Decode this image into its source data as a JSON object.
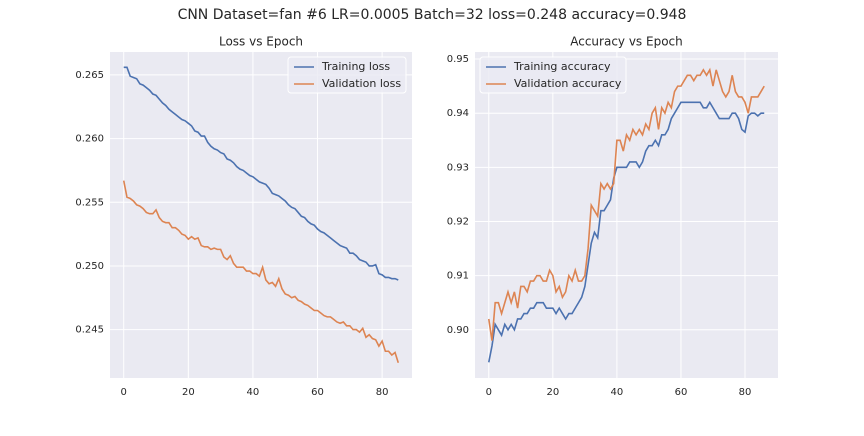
{
  "title": "CNN Dataset=fan #6 LR=0.0005 Batch=32 loss=0.248 accuracy=0.948",
  "chart_data": [
    {
      "type": "line",
      "title": "Loss vs Epoch",
      "legend": "upper right",
      "grid": true,
      "x": [
        0,
        1,
        2,
        3,
        4,
        5,
        6,
        7,
        8,
        9,
        10,
        11,
        12,
        13,
        14,
        15,
        16,
        17,
        18,
        19,
        20,
        21,
        22,
        23,
        24,
        25,
        26,
        27,
        28,
        29,
        30,
        31,
        32,
        33,
        34,
        35,
        36,
        37,
        38,
        39,
        40,
        41,
        42,
        43,
        44,
        45,
        46,
        47,
        48,
        49,
        50,
        51,
        52,
        53,
        54,
        55,
        56,
        57,
        58,
        59,
        60,
        61,
        62,
        63,
        64,
        65,
        66,
        67,
        68,
        69,
        70,
        71,
        72,
        73,
        74,
        75,
        76,
        77,
        78,
        79,
        80,
        81,
        82,
        83,
        84,
        85
      ],
      "xlim": [
        -4.25,
        89.25
      ],
      "xticks": [
        0,
        20,
        40,
        60,
        80
      ],
      "ylim": [
        0.2412,
        0.2668
      ],
      "yticks": [
        0.245,
        {
          "value": 0.25,
          "label": "0.250"
        },
        0.255,
        {
          "value": 0.26,
          "label": "0.260"
        },
        0.265
      ],
      "series": [
        {
          "name": "Training loss",
          "color": "#4c72b0",
          "values": [
            0.2656,
            0.2656,
            0.2649,
            0.2648,
            0.2647,
            0.2643,
            0.2642,
            0.264,
            0.2638,
            0.2635,
            0.2634,
            0.2631,
            0.2628,
            0.2626,
            0.2623,
            0.2621,
            0.2619,
            0.2617,
            0.2615,
            0.2614,
            0.2612,
            0.261,
            0.2606,
            0.2605,
            0.2602,
            0.2602,
            0.2597,
            0.2594,
            0.2592,
            0.2591,
            0.2589,
            0.2588,
            0.2584,
            0.2583,
            0.2581,
            0.2578,
            0.2576,
            0.2575,
            0.2573,
            0.2571,
            0.257,
            0.2568,
            0.2566,
            0.2565,
            0.2564,
            0.2561,
            0.2557,
            0.2556,
            0.2555,
            0.2553,
            0.2551,
            0.2548,
            0.2546,
            0.2545,
            0.2542,
            0.2539,
            0.2538,
            0.2535,
            0.2533,
            0.2532,
            0.2529,
            0.2527,
            0.2526,
            0.2524,
            0.2522,
            0.252,
            0.2518,
            0.2516,
            0.2515,
            0.2514,
            0.251,
            0.251,
            0.2508,
            0.2505,
            0.2504,
            0.2503,
            0.25,
            0.25,
            0.2501,
            0.2494,
            0.2493,
            0.2491,
            0.2491,
            0.249,
            0.249,
            0.2489
          ]
        },
        {
          "name": "Validation loss",
          "color": "#dd8452",
          "values": [
            0.2567,
            0.2554,
            0.2553,
            0.2551,
            0.2548,
            0.2547,
            0.2545,
            0.2542,
            0.2541,
            0.2541,
            0.2544,
            0.2538,
            0.2535,
            0.2534,
            0.2534,
            0.253,
            0.253,
            0.2528,
            0.2525,
            0.2524,
            0.2521,
            0.2523,
            0.2521,
            0.2522,
            0.2516,
            0.2515,
            0.2515,
            0.2513,
            0.2514,
            0.2513,
            0.2513,
            0.2507,
            0.2505,
            0.2508,
            0.2502,
            0.2499,
            0.2499,
            0.2499,
            0.2496,
            0.2496,
            0.2494,
            0.2494,
            0.2492,
            0.2499,
            0.2489,
            0.2486,
            0.2487,
            0.2484,
            0.249,
            0.2482,
            0.2478,
            0.2477,
            0.2475,
            0.2476,
            0.2473,
            0.2472,
            0.247,
            0.2469,
            0.2467,
            0.2465,
            0.2465,
            0.2463,
            0.2461,
            0.246,
            0.246,
            0.2458,
            0.2456,
            0.2455,
            0.2456,
            0.2453,
            0.2453,
            0.245,
            0.245,
            0.2448,
            0.2451,
            0.2444,
            0.2446,
            0.2443,
            0.2442,
            0.2437,
            0.2441,
            0.2433,
            0.2433,
            0.243,
            0.2432,
            0.2424
          ]
        }
      ]
    },
    {
      "type": "line",
      "title": "Accuracy vs Epoch",
      "legend": "upper left",
      "grid": true,
      "x": [
        0,
        1,
        2,
        3,
        4,
        5,
        6,
        7,
        8,
        9,
        10,
        11,
        12,
        13,
        14,
        15,
        16,
        17,
        18,
        19,
        20,
        21,
        22,
        23,
        24,
        25,
        26,
        27,
        28,
        29,
        30,
        31,
        32,
        33,
        34,
        35,
        36,
        37,
        38,
        39,
        40,
        41,
        42,
        43,
        44,
        45,
        46,
        47,
        48,
        49,
        50,
        51,
        52,
        53,
        54,
        55,
        56,
        57,
        58,
        59,
        60,
        61,
        62,
        63,
        64,
        65,
        66,
        67,
        68,
        69,
        70,
        71,
        72,
        73,
        74,
        75,
        76,
        77,
        78,
        79,
        80,
        81,
        82,
        83,
        84,
        85,
        86
      ],
      "xlim": [
        -4.3,
        90.3
      ],
      "xticks": [
        0,
        20,
        40,
        60,
        80
      ],
      "ylim": [
        0.8911,
        0.9513
      ],
      "yticks": [
        {
          "value": 0.9,
          "label": "0.90"
        },
        0.91,
        0.92,
        0.93,
        0.94,
        0.95
      ],
      "series": [
        {
          "name": "Training accuracy",
          "color": "#4c72b0",
          "values": [
            0.894,
            0.897,
            0.901,
            0.9,
            0.899,
            0.901,
            0.9,
            0.901,
            0.9,
            0.902,
            0.902,
            0.903,
            0.903,
            0.904,
            0.904,
            0.905,
            0.905,
            0.905,
            0.904,
            0.904,
            0.904,
            0.903,
            0.904,
            0.903,
            0.902,
            0.903,
            0.903,
            0.904,
            0.905,
            0.906,
            0.908,
            0.912,
            0.916,
            0.918,
            0.917,
            0.922,
            0.922,
            0.923,
            0.924,
            0.928,
            0.93,
            0.93,
            0.93,
            0.93,
            0.931,
            0.931,
            0.931,
            0.93,
            0.931,
            0.933,
            0.934,
            0.934,
            0.935,
            0.934,
            0.936,
            0.936,
            0.937,
            0.939,
            0.94,
            0.941,
            0.942,
            0.942,
            0.942,
            0.942,
            0.942,
            0.942,
            0.942,
            0.941,
            0.941,
            0.942,
            0.941,
            0.94,
            0.939,
            0.939,
            0.939,
            0.939,
            0.94,
            0.94,
            0.939,
            0.937,
            0.9365,
            0.9395,
            0.94,
            0.94,
            0.9395,
            0.94,
            0.94
          ]
        },
        {
          "name": "Validation accuracy",
          "color": "#dd8452",
          "values": [
            0.902,
            0.898,
            0.905,
            0.905,
            0.903,
            0.905,
            0.907,
            0.905,
            0.907,
            0.904,
            0.908,
            0.908,
            0.907,
            0.909,
            0.909,
            0.91,
            0.91,
            0.909,
            0.909,
            0.911,
            0.91,
            0.907,
            0.908,
            0.906,
            0.907,
            0.91,
            0.909,
            0.911,
            0.909,
            0.909,
            0.91,
            0.915,
            0.923,
            0.922,
            0.921,
            0.927,
            0.926,
            0.927,
            0.926,
            0.927,
            0.935,
            0.935,
            0.933,
            0.936,
            0.935,
            0.937,
            0.936,
            0.937,
            0.936,
            0.938,
            0.937,
            0.94,
            0.941,
            0.937,
            0.941,
            0.94,
            0.942,
            0.941,
            0.944,
            0.945,
            0.945,
            0.946,
            0.947,
            0.947,
            0.946,
            0.947,
            0.947,
            0.948,
            0.947,
            0.948,
            0.945,
            0.948,
            0.946,
            0.944,
            0.943,
            0.944,
            0.947,
            0.944,
            0.943,
            0.943,
            0.942,
            0.94,
            0.943,
            0.943,
            0.943,
            0.944,
            0.945
          ]
        }
      ]
    }
  ]
}
